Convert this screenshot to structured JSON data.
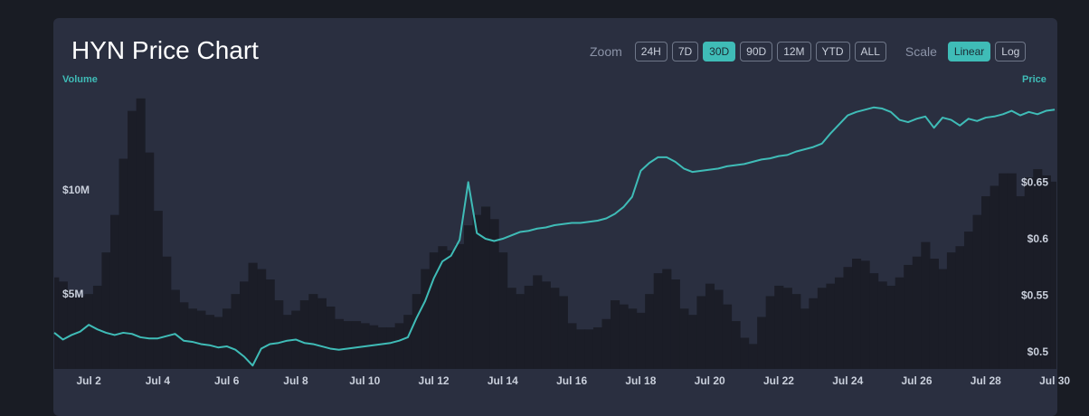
{
  "title": "HYN Price Chart",
  "controls": {
    "zoom_label": "Zoom",
    "zoom_options": [
      "24H",
      "7D",
      "30D",
      "90D",
      "12M",
      "YTD",
      "ALL"
    ],
    "zoom_selected": "30D",
    "scale_label": "Scale",
    "scale_options": [
      "Linear",
      "Log"
    ],
    "scale_selected": "Linear"
  },
  "colors": {
    "price_line": "#3fbcb7",
    "volume_bars": "#1b1d27",
    "panel": "#2a2f40",
    "active_button": "#3fbcb7"
  },
  "chart_data": {
    "type": "line+bar",
    "x_ticks": [
      "Jul 2",
      "Jul 4",
      "Jul 6",
      "Jul 8",
      "Jul 10",
      "Jul 12",
      "Jul 14",
      "Jul 16",
      "Jul 18",
      "Jul 20",
      "Jul 22",
      "Jul 24",
      "Jul 26",
      "Jul 28",
      "Jul 30"
    ],
    "x_range_days": [
      1,
      30.05
    ],
    "price_axis": {
      "title": "Price",
      "ticks": [
        "$0.5",
        "$0.55",
        "$0.6",
        "$0.65"
      ],
      "tick_values": [
        0.5,
        0.55,
        0.6,
        0.65
      ],
      "ylim": [
        0.485,
        0.735
      ]
    },
    "volume_axis": {
      "title": "Volume",
      "ticks": [
        "$5M",
        "$10M"
      ],
      "tick_values": [
        5000000,
        10000000
      ],
      "ylim": [
        1400000,
        15000000
      ]
    },
    "price_series": {
      "x": [
        1.0,
        1.25,
        1.5,
        1.75,
        2.0,
        2.25,
        2.5,
        2.75,
        3.0,
        3.25,
        3.5,
        3.75,
        4.0,
        4.25,
        4.5,
        4.75,
        5.0,
        5.25,
        5.5,
        5.75,
        6.0,
        6.25,
        6.5,
        6.75,
        7.0,
        7.25,
        7.5,
        7.75,
        8.0,
        8.25,
        8.5,
        8.75,
        9.0,
        9.25,
        9.5,
        9.75,
        10.0,
        10.25,
        10.5,
        10.75,
        11.0,
        11.25,
        11.5,
        11.75,
        12.0,
        12.25,
        12.5,
        12.75,
        13.0,
        13.25,
        13.5,
        13.75,
        14.0,
        14.25,
        14.5,
        14.75,
        15.0,
        15.25,
        15.5,
        15.75,
        16.0,
        16.25,
        16.5,
        16.75,
        17.0,
        17.25,
        17.5,
        17.75,
        18.0,
        18.25,
        18.5,
        18.75,
        19.0,
        19.25,
        19.5,
        19.75,
        20.0,
        20.25,
        20.5,
        20.75,
        21.0,
        21.25,
        21.5,
        21.75,
        22.0,
        22.25,
        22.5,
        22.75,
        23.0,
        23.25,
        23.5,
        23.75,
        24.0,
        24.25,
        24.5,
        24.75,
        25.0,
        25.25,
        25.5,
        25.75,
        26.0,
        26.25,
        26.5,
        26.75,
        27.0,
        27.25,
        27.5,
        27.75,
        28.0,
        28.25,
        28.5,
        28.75,
        29.0,
        29.25,
        29.5,
        29.75,
        30.0
      ],
      "values": [
        0.517,
        0.511,
        0.515,
        0.518,
        0.524,
        0.52,
        0.517,
        0.515,
        0.517,
        0.516,
        0.513,
        0.512,
        0.512,
        0.514,
        0.516,
        0.51,
        0.509,
        0.507,
        0.506,
        0.504,
        0.505,
        0.502,
        0.496,
        0.488,
        0.503,
        0.507,
        0.508,
        0.51,
        0.511,
        0.508,
        0.507,
        0.505,
        0.503,
        0.502,
        0.503,
        0.504,
        0.505,
        0.506,
        0.507,
        0.508,
        0.51,
        0.513,
        0.53,
        0.545,
        0.565,
        0.58,
        0.585,
        0.599,
        0.65,
        0.605,
        0.6,
        0.598,
        0.6,
        0.603,
        0.606,
        0.607,
        0.609,
        0.61,
        0.612,
        0.613,
        0.614,
        0.614,
        0.615,
        0.616,
        0.618,
        0.622,
        0.628,
        0.637,
        0.66,
        0.667,
        0.672,
        0.672,
        0.668,
        0.662,
        0.659,
        0.66,
        0.661,
        0.662,
        0.664,
        0.665,
        0.666,
        0.668,
        0.67,
        0.671,
        0.673,
        0.674,
        0.677,
        0.679,
        0.681,
        0.684,
        0.693,
        0.701,
        0.709,
        0.712,
        0.714,
        0.716,
        0.715,
        0.712,
        0.705,
        0.703,
        0.706,
        0.708,
        0.698,
        0.707,
        0.705,
        0.7,
        0.706,
        0.704,
        0.707,
        0.708,
        0.71,
        0.713,
        0.709,
        0.712,
        0.71,
        0.713,
        0.714
      ]
    },
    "volume_series": {
      "x": [
        1.0,
        1.25,
        1.5,
        1.75,
        2.0,
        2.25,
        2.5,
        2.75,
        3.0,
        3.25,
        3.5,
        3.75,
        4.0,
        4.25,
        4.5,
        4.75,
        5.0,
        5.25,
        5.5,
        5.75,
        6.0,
        6.25,
        6.5,
        6.75,
        7.0,
        7.25,
        7.5,
        7.75,
        8.0,
        8.25,
        8.5,
        8.75,
        9.0,
        9.25,
        9.5,
        9.75,
        10.0,
        10.25,
        10.5,
        10.75,
        11.0,
        11.25,
        11.5,
        11.75,
        12.0,
        12.25,
        12.5,
        12.75,
        13.0,
        13.25,
        13.5,
        13.75,
        14.0,
        14.25,
        14.5,
        14.75,
        15.0,
        15.25,
        15.5,
        15.75,
        16.0,
        16.25,
        16.5,
        16.75,
        17.0,
        17.25,
        17.5,
        17.75,
        18.0,
        18.25,
        18.5,
        18.75,
        19.0,
        19.25,
        19.5,
        19.75,
        20.0,
        20.25,
        20.5,
        20.75,
        21.0,
        21.25,
        21.5,
        21.75,
        22.0,
        22.25,
        22.5,
        22.75,
        23.0,
        23.25,
        23.5,
        23.75,
        24.0,
        24.25,
        24.5,
        24.75,
        25.0,
        25.25,
        25.5,
        25.75,
        26.0,
        26.25,
        26.5,
        26.75,
        27.0,
        27.25,
        27.5,
        27.75,
        28.0,
        28.25,
        28.5,
        28.75,
        29.0,
        29.25,
        29.5,
        29.75,
        30.0
      ],
      "values": [
        5800000,
        5600000,
        5200000,
        4900000,
        5000000,
        5400000,
        7000000,
        8800000,
        11500000,
        13800000,
        14400000,
        11800000,
        9000000,
        6800000,
        5200000,
        4600000,
        4300000,
        4200000,
        4000000,
        3900000,
        4300000,
        5000000,
        5600000,
        6500000,
        6200000,
        5700000,
        4700000,
        4000000,
        4200000,
        4700000,
        5000000,
        4800000,
        4400000,
        3800000,
        3700000,
        3700000,
        3600000,
        3500000,
        3400000,
        3400000,
        3600000,
        4000000,
        5000000,
        6200000,
        7000000,
        7300000,
        7100000,
        7400000,
        8300000,
        8800000,
        9200000,
        8600000,
        7000000,
        5300000,
        5000000,
        5400000,
        5900000,
        5600000,
        5300000,
        4900000,
        3600000,
        3300000,
        3300000,
        3400000,
        3800000,
        4700000,
        4500000,
        4300000,
        4100000,
        5000000,
        6000000,
        6200000,
        5700000,
        4300000,
        4000000,
        4900000,
        5500000,
        5200000,
        4500000,
        3700000,
        2900000,
        2600000,
        3900000,
        4900000,
        5400000,
        5300000,
        5000000,
        4300000,
        4800000,
        5300000,
        5500000,
        5800000,
        6300000,
        6700000,
        6600000,
        6000000,
        5600000,
        5400000,
        5800000,
        6400000,
        6800000,
        7500000,
        6700000,
        6200000,
        7000000,
        7300000,
        8000000,
        8800000,
        9700000,
        10200000,
        10800000,
        10800000,
        9700000,
        10600000,
        11000000,
        10700000,
        10400000
      ]
    }
  }
}
